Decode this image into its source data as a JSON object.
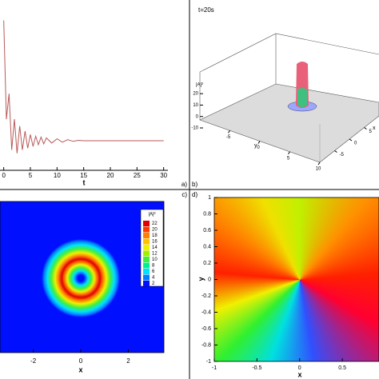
{
  "chart_data": [
    {
      "type": "line",
      "panel_label": "a)",
      "xlabel": "t",
      "x": [
        0,
        0.5,
        1,
        1.5,
        2,
        2.5,
        3,
        3.5,
        4,
        4.5,
        5,
        5.5,
        6,
        6.5,
        7,
        7.5,
        8,
        9,
        10,
        11,
        12,
        13,
        14,
        15,
        20,
        25,
        30
      ],
      "series": [
        {
          "color": "#b85a5a",
          "values": [
            8.8,
            3.0,
            4.5,
            1.2,
            3.0,
            1.0,
            2.6,
            1.2,
            2.3,
            1.3,
            2.1,
            1.4,
            2.0,
            1.5,
            1.95,
            1.55,
            1.9,
            1.6,
            1.85,
            1.65,
            1.8,
            1.7,
            1.76,
            1.74,
            1.74,
            1.74,
            1.74
          ]
        }
      ],
      "xlim": [
        -0.7,
        30.8
      ],
      "ylim": [
        0,
        10
      ],
      "xticks": [
        0,
        5,
        10,
        15,
        20,
        25,
        30
      ]
    },
    {
      "type": "surface3d",
      "panel_label": "b)",
      "title": "t=20s",
      "zlabel": "|A|²",
      "xlabel": "x",
      "ylabel": "y",
      "xlim": [
        -10,
        10
      ],
      "ylim": [
        -10,
        10
      ],
      "zlim": [
        -10,
        25
      ],
      "xticks": [
        -5,
        0,
        5,
        10
      ],
      "yticks": [
        -5,
        0,
        5,
        10
      ],
      "zticks": [
        -10,
        0,
        10,
        20
      ]
    },
    {
      "type": "heatmap",
      "panel_label": "c)",
      "xlabel": "x",
      "legend_title": "|A|²",
      "xlim": [
        -3.4,
        3.5
      ],
      "xticks": [
        -2,
        0,
        2
      ],
      "levels": [
        22,
        20,
        18,
        16,
        14,
        12,
        10,
        8,
        6,
        4,
        2
      ],
      "level_colors": [
        "#e00000",
        "#ff3c00",
        "#ff8000",
        "#ffc000",
        "#f0f000",
        "#a0f000",
        "#40f040",
        "#00f090",
        "#00e0ff",
        "#0080ff",
        "#0010ff"
      ]
    },
    {
      "type": "phase",
      "panel_label": "d)",
      "xlabel": "x",
      "ylabel": "y",
      "xlim": [
        -1,
        0.93
      ],
      "ylim": [
        -1,
        1
      ],
      "xticks": [
        -1,
        -0.5,
        0,
        0.5
      ],
      "yticks": [
        1,
        0.8,
        0.6,
        0.4,
        0.2,
        0,
        -0.2,
        -0.4,
        -0.6,
        -0.8,
        -1
      ]
    }
  ]
}
